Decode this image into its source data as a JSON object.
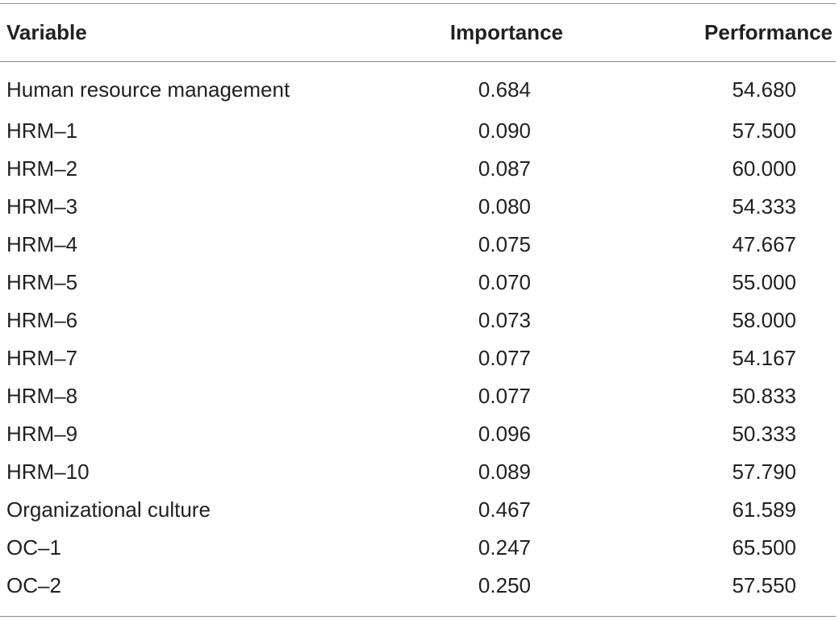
{
  "table": {
    "headers": {
      "variable": "Variable",
      "importance": "Importance",
      "performance": "Performance"
    },
    "rows": [
      {
        "variable": "Human resource management",
        "importance": "0.684",
        "performance": "54.680"
      },
      {
        "variable": "HRM–1",
        "importance": "0.090",
        "performance": "57.500"
      },
      {
        "variable": "HRM–2",
        "importance": "0.087",
        "performance": "60.000"
      },
      {
        "variable": "HRM–3",
        "importance": "0.080",
        "performance": "54.333"
      },
      {
        "variable": "HRM–4",
        "importance": "0.075",
        "performance": "47.667"
      },
      {
        "variable": "HRM–5",
        "importance": "0.070",
        "performance": "55.000"
      },
      {
        "variable": "HRM–6",
        "importance": "0.073",
        "performance": "58.000"
      },
      {
        "variable": "HRM–7",
        "importance": "0.077",
        "performance": "54.167"
      },
      {
        "variable": "HRM–8",
        "importance": "0.077",
        "performance": "50.833"
      },
      {
        "variable": "HRM–9",
        "importance": "0.096",
        "performance": "50.333"
      },
      {
        "variable": "HRM–10",
        "importance": "0.089",
        "performance": "57.790"
      },
      {
        "variable": "Organizational culture",
        "importance": "0.467",
        "performance": "61.589"
      },
      {
        "variable": "OC–1",
        "importance": "0.247",
        "performance": "65.500"
      },
      {
        "variable": "OC–2",
        "importance": "0.250",
        "performance": "57.550"
      }
    ]
  }
}
